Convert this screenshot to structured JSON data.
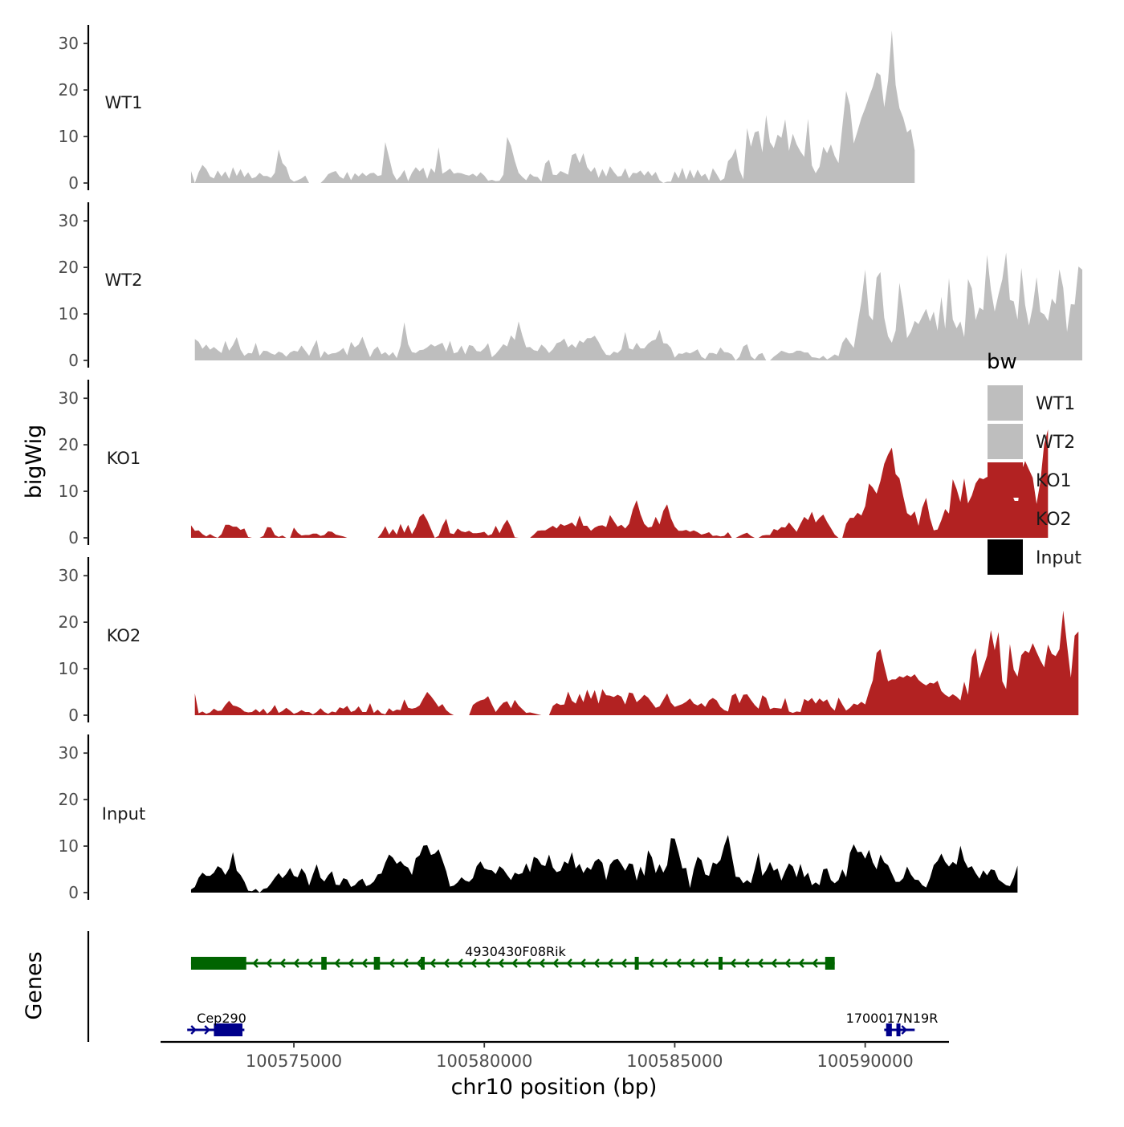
{
  "chart_data": {
    "type": "area",
    "xlabel": "chr10 position (bp)",
    "ylabel": "bigWig",
    "genes_label": "Genes",
    "xlim": [
      100571500,
      100592200
    ],
    "x_ticks": [
      {
        "value": 100575000,
        "label": "100575000"
      },
      {
        "value": 100580000,
        "label": "100580000"
      },
      {
        "value": 100585000,
        "label": "100585000"
      },
      {
        "value": 100590000,
        "label": "100590000"
      }
    ],
    "ylim": [
      0,
      34
    ],
    "y_ticks": [
      {
        "value": 0,
        "label": "0"
      },
      {
        "value": 10,
        "label": "10"
      },
      {
        "value": 20,
        "label": "20"
      },
      {
        "value": 30,
        "label": "30"
      }
    ],
    "legend": {
      "title": "bw",
      "placement": "right",
      "entries": [
        {
          "label": "WT1",
          "color": "#bebebe"
        },
        {
          "label": "WT2",
          "color": "#bebebe"
        },
        {
          "label": "KO1",
          "color": "#b22222"
        },
        {
          "label": "KO2",
          "color": "#b22222"
        },
        {
          "label": "Input",
          "color": "#000000"
        }
      ]
    },
    "bin_size_bp": 100,
    "series": [
      {
        "name": "WT1",
        "color": "#bebebe",
        "x_start": 100572300,
        "values": [
          2.6,
          0,
          2.3,
          3.9,
          3.0,
          1.4,
          1.0,
          2.7,
          1.4,
          2.5,
          0.9,
          3.4,
          1.5,
          3.0,
          1.3,
          2.3,
          1.0,
          1.3,
          2.2,
          1.5,
          1.5,
          1.1,
          2.2,
          7.2,
          4.3,
          3.4,
          0.9,
          0.3,
          0.6,
          1.0,
          1.6,
          0,
          0,
          0,
          0,
          0.8,
          1.9,
          2.3,
          2.6,
          1.4,
          0.9,
          2.4,
          0.6,
          2.1,
          1.4,
          2.2,
          1.5,
          2.1,
          2.2,
          1.5,
          1.7,
          8.8,
          5.5,
          2.1,
          0.6,
          1.5,
          2.8,
          0.4,
          2.2,
          3.4,
          2.5,
          3.3,
          0.9,
          3.2,
          2.2,
          7.7,
          2.0,
          2.5,
          3.1,
          2.0,
          2.2,
          2.1,
          1.8,
          1.6,
          2.0,
          1.4,
          2.3,
          1.6,
          0.5,
          0.7,
          0.4,
          0.5,
          1.8,
          9.9,
          8.0,
          4.8,
          2.2,
          1.3,
          0.6,
          2.0,
          1.4,
          1.3,
          0.3,
          4.2,
          5.0,
          1.8,
          1.7,
          2.6,
          2.2,
          1.8,
          6.0,
          6.4,
          4.3,
          6.4,
          3.4,
          2.4,
          3.4,
          1.1,
          3.0,
          1.4,
          3.6,
          2.4,
          1.4,
          1.5,
          3.2,
          1.0,
          2.2,
          2.1,
          2.7,
          1.6,
          2.6,
          1.5,
          2.4,
          0.6,
          0,
          0.3,
          0.3,
          2.5,
          1.0,
          3.3,
          0.7,
          2.9,
          1.0,
          2.9,
          1.4,
          2.0,
          0.5,
          3.2,
          1.9,
          0.5,
          1.0,
          4.7,
          5.6,
          7.4,
          2.8,
          0.8,
          11.8,
          7.8,
          10.9,
          11.2,
          6.6,
          14.6,
          8.8,
          7.5,
          10.4,
          9.7,
          13.7,
          6.9,
          10.6,
          8.3,
          6.8,
          5.6,
          13.8,
          3.8,
          2.1,
          3.5,
          7.8,
          6.4,
          8.3,
          5.8,
          4.3,
          12.1,
          19.8,
          16.7,
          8.5,
          11.2,
          14.0,
          16.1,
          18.5,
          20.7,
          23.8,
          23.2,
          16.3,
          22.0,
          32.8,
          21.1,
          16.1,
          14.0,
          10.9,
          11.6,
          7.0
        ]
      },
      {
        "name": "WT2",
        "color": "#bebebe",
        "x_start": 100572400,
        "values": [
          4.6,
          4.0,
          2.5,
          3.4,
          2.3,
          2.9,
          2.2,
          1.6,
          4.2,
          2.1,
          3.3,
          5.0,
          2.3,
          1.0,
          1.6,
          1.5,
          3.8,
          1.0,
          2.1,
          2.0,
          1.5,
          1.2,
          1.9,
          1.6,
          0.8,
          1.7,
          2.1,
          1.9,
          3.2,
          2.1,
          1.0,
          2.8,
          4.4,
          0.5,
          2.0,
          1.2,
          1.5,
          1.6,
          2.0,
          2.7,
          1.1,
          4.0,
          2.8,
          3.4,
          5.1,
          2.8,
          0.7,
          2.3,
          3.0,
          1.3,
          1.8,
          1.0,
          1.8,
          0.5,
          3.1,
          8.2,
          3.5,
          1.8,
          1.6,
          2.2,
          2.3,
          2.8,
          3.5,
          3.0,
          3.4,
          3.8,
          1.9,
          4.2,
          1.5,
          1.8,
          3.2,
          1.3,
          3.3,
          3.1,
          2.0,
          1.9,
          2.6,
          3.7,
          0.7,
          1.4,
          2.4,
          3.5,
          3.0,
          5.4,
          4.4,
          8.4,
          5.3,
          2.8,
          2.9,
          2.2,
          2.0,
          3.4,
          2.7,
          1.6,
          2.4,
          3.7,
          4.0,
          4.7,
          2.8,
          3.5,
          2.7,
          4.3,
          3.8,
          4.8,
          4.8,
          5.3,
          4.0,
          2.4,
          1.2,
          1.1,
          1.9,
          1.6,
          2.4,
          6.1,
          2.6,
          2.3,
          3.8,
          2.6,
          2.6,
          3.6,
          4.2,
          4.5,
          6.6,
          3.7,
          3.6,
          2.7,
          0.6,
          1.5,
          1.4,
          1.8,
          1.5,
          1.9,
          2.4,
          0.8,
          0.3,
          1.6,
          1.6,
          1.3,
          2.8,
          1.8,
          1.7,
          1.3,
          0,
          0.8,
          3.0,
          3.5,
          0.9,
          0.2,
          1.3,
          1.6,
          0,
          0,
          0.8,
          1.4,
          2.1,
          1.8,
          1.5,
          1.6,
          2.1,
          2.1,
          1.7,
          1.7,
          0.7,
          0.6,
          0.4,
          1.0,
          0.2,
          0.7,
          1.3,
          0.9,
          3.8,
          5.0,
          3.8,
          2.7,
          7.8,
          12.7,
          19.5,
          9.7,
          8.6,
          17.8,
          19.0,
          9.2,
          5.2,
          3.8,
          6.4,
          16.7,
          11.5,
          4.8,
          6.2,
          8.5,
          7.8,
          9.5,
          11.1,
          8.4,
          10.5,
          6.4,
          13.7,
          6.8,
          17.7,
          8.8,
          6.9,
          8.4,
          5.0,
          17.5,
          15.5,
          8.7,
          11.4,
          10.8,
          22.7,
          15.3,
          10.5,
          14.2,
          17.4,
          23.2,
          13.0,
          12.7,
          8.8,
          19.9,
          11.9,
          7.5,
          11.6,
          17.9,
          10.4,
          9.9,
          8.5,
          13.3,
          12.1,
          19.6,
          15.6,
          6.1,
          12.1,
          12.0,
          20.2,
          19.5
        ]
      },
      {
        "name": "KO1",
        "color": "#b22222",
        "x_start": 100572300,
        "values": [
          2.7,
          1.5,
          1.6,
          0.8,
          0.3,
          0.8,
          0.3,
          0,
          0.8,
          2.8,
          2.8,
          2.4,
          2.4,
          1.7,
          2.0,
          0.2,
          0,
          0,
          0,
          0.4,
          2.3,
          2.2,
          0.6,
          0.2,
          0.5,
          0,
          0,
          2.2,
          1.1,
          0.5,
          0.6,
          0.6,
          0.9,
          0.9,
          0.4,
          0.6,
          1.4,
          1.3,
          0.7,
          0.5,
          0.3,
          0,
          0,
          0,
          0,
          0,
          0,
          0,
          0,
          0,
          1.0,
          2.5,
          0.7,
          1.9,
          0.7,
          3.0,
          1.1,
          2.8,
          0.8,
          2.3,
          4.5,
          5.2,
          3.8,
          1.9,
          0,
          0.4,
          2.6,
          4.1,
          1.0,
          0.8,
          2.0,
          1.4,
          1.2,
          1.5,
          1.0,
          1.0,
          1.1,
          1.3,
          0.5,
          0.8,
          2.6,
          1.0,
          2.7,
          3.9,
          2.3,
          0.1,
          0,
          0,
          0,
          0,
          0.7,
          1.5,
          1.6,
          1.6,
          2.1,
          2.6,
          2.0,
          3.0,
          2.6,
          2.9,
          3.3,
          2.4,
          4.8,
          2.6,
          2.6,
          1.5,
          2.2,
          2.6,
          2.7,
          2.3,
          4.9,
          3.6,
          2.4,
          2.8,
          2.0,
          3.0,
          6.1,
          8.1,
          5.1,
          3.0,
          2.2,
          2.4,
          4.5,
          2.9,
          5.8,
          7.2,
          4.2,
          2.4,
          1.5,
          1.5,
          1.7,
          1.3,
          1.6,
          1.2,
          0.7,
          0.9,
          1.2,
          0.4,
          0.5,
          0.3,
          0.4,
          1.2,
          0,
          0,
          0.4,
          0.8,
          1.1,
          0.4,
          0,
          0,
          0.5,
          0.6,
          0.6,
          1.9,
          1.6,
          2.3,
          2.2,
          3.3,
          2.3,
          1.3,
          3.0,
          4.5,
          3.8,
          5.6,
          3.3,
          4.3,
          5.0,
          3.4,
          2.1,
          0.7,
          0,
          0,
          3.0,
          4.3,
          4.3,
          5.4,
          4.8,
          6.8,
          11.7,
          10.8,
          9.5,
          12.2,
          15.9,
          17.9,
          19.4,
          13.7,
          12.8,
          8.9,
          5.3,
          4.7,
          5.7,
          2.6,
          6.5,
          8.6,
          4.3,
          1.6,
          1.8,
          3.8,
          6.2,
          5.2,
          12.6,
          10.5,
          7.7,
          12.8,
          7.4,
          9.1,
          11.7,
          12.9,
          12.6,
          13.1,
          12.7,
          9.8,
          9.4,
          13.3,
          10.5,
          10.6,
          8.4,
          6.5,
          14.3,
          16.5,
          14.7,
          12.9,
          7.3,
          12.1,
          20.2,
          23.3
        ]
      },
      {
        "name": "KO2",
        "color": "#b22222",
        "x_start": 100572400,
        "values": [
          4.7,
          0.4,
          0.8,
          0.3,
          0.6,
          1.4,
          0.9,
          1.0,
          2.2,
          3.1,
          2.1,
          1.9,
          1.5,
          0.8,
          0.6,
          0.7,
          1.3,
          0.6,
          1.4,
          0.3,
          1.0,
          2.2,
          0.5,
          0.9,
          1.6,
          1.0,
          0.3,
          0.6,
          1.1,
          0.7,
          0.7,
          0.2,
          0.7,
          1.5,
          0.7,
          0.3,
          0.8,
          0.6,
          1.7,
          1.4,
          2.0,
          0.7,
          1.0,
          1.9,
          0.7,
          0.7,
          2.6,
          0.5,
          1.2,
          0.4,
          0.2,
          1.5,
          0.8,
          1.2,
          1.1,
          3.4,
          1.6,
          1.4,
          1.6,
          2.1,
          3.6,
          5.0,
          4.1,
          3.0,
          1.8,
          2.4,
          1.1,
          0.4,
          0,
          0,
          0,
          0,
          0,
          2.2,
          2.8,
          3.2,
          3.4,
          4.1,
          2.3,
          0.7,
          1.8,
          2.7,
          3.0,
          1.5,
          3.3,
          2.1,
          1.3,
          0.5,
          0.6,
          0.4,
          0.2,
          0,
          0,
          0,
          2.0,
          2.6,
          2.2,
          2.3,
          5.1,
          3.1,
          2.5,
          4.6,
          2.8,
          5.5,
          3.5,
          5.4,
          2.5,
          5.6,
          4.3,
          4.2,
          3.9,
          4.4,
          4.0,
          2.3,
          4.9,
          4.7,
          2.8,
          3.5,
          4.4,
          3.8,
          2.7,
          1.6,
          1.9,
          3.3,
          4.7,
          2.7,
          1.8,
          2.1,
          2.4,
          2.9,
          3.6,
          2.5,
          2.1,
          2.6,
          1.8,
          3.2,
          3.7,
          3.2,
          1.8,
          1.1,
          0.8,
          4.2,
          4.7,
          2.6,
          4.4,
          4.5,
          3.3,
          2.2,
          1.4,
          4.3,
          3.7,
          1.3,
          1.6,
          1.5,
          1.4,
          3.7,
          0.8,
          0.5,
          0.8,
          0.7,
          3.5,
          3.0,
          3.7,
          2.5,
          3.6,
          2.9,
          3.4,
          1.8,
          1.0,
          3.8,
          2.3,
          1.0,
          1.6,
          2.5,
          2.2,
          2.9,
          2.3,
          5.1,
          7.5,
          13.4,
          14.2,
          10.6,
          7.3,
          7.7,
          7.7,
          8.4,
          8.1,
          8.6,
          8.2,
          8.8,
          7.6,
          6.9,
          6.4,
          7.0,
          6.8,
          7.4,
          5.2,
          4.4,
          3.9,
          4.5,
          4.0,
          3.2,
          7.2,
          4.4,
          12.4,
          14.4,
          7.9,
          10.3,
          12.8,
          18.3,
          14.0,
          17.9,
          7.3,
          5.6,
          15.3,
          9.8,
          8.3,
          12.9,
          13.9,
          13.4,
          15.5,
          13.6,
          11.8,
          10.3,
          15.2,
          13.2,
          12.7,
          14.2,
          22.5,
          15.1,
          8.1,
          17.1,
          18.0
        ]
      },
      {
        "name": "Input",
        "color": "#000000",
        "x_start": 100572300,
        "values": [
          0.7,
          1.2,
          3.2,
          4.3,
          3.6,
          3.6,
          4.3,
          5.7,
          5.2,
          3.8,
          5.2,
          8.7,
          4.7,
          3.8,
          2.4,
          0.4,
          0.3,
          0.8,
          0,
          0.8,
          1.0,
          2.0,
          3.2,
          4.2,
          3.1,
          4.0,
          5.3,
          3.6,
          3.3,
          5.2,
          4.1,
          1.5,
          3.9,
          6.1,
          3.2,
          2.4,
          3.7,
          4.6,
          1.7,
          1.6,
          3.1,
          2.8,
          1.2,
          1.6,
          2.5,
          3.0,
          1.4,
          1.7,
          2.4,
          3.9,
          4.1,
          6.4,
          8.2,
          7.5,
          6.2,
          6.8,
          5.8,
          5.4,
          3.8,
          7.4,
          8.0,
          10.1,
          10.2,
          8.1,
          8.4,
          9.3,
          7.0,
          4.6,
          1.3,
          1.5,
          2.2,
          3.3,
          2.6,
          2.3,
          3.1,
          5.7,
          6.7,
          5.2,
          4.9,
          4.8,
          4.0,
          5.7,
          5.0,
          3.8,
          2.7,
          4.3,
          3.9,
          4.2,
          6.3,
          4.4,
          7.7,
          7.3,
          6.0,
          5.7,
          8.2,
          5.4,
          4.4,
          4.7,
          6.7,
          6.2,
          8.7,
          5.2,
          6.2,
          4.2,
          5.5,
          4.9,
          6.7,
          7.3,
          6.4,
          2.7,
          6.0,
          7.0,
          7.3,
          6.1,
          4.7,
          6.3,
          6.1,
          2.6,
          5.6,
          3.6,
          9.1,
          7.6,
          4.2,
          6.1,
          4.3,
          5.9,
          11.7,
          11.6,
          8.6,
          5.2,
          5.3,
          1.0,
          5.0,
          7.7,
          7.0,
          3.9,
          3.6,
          6.5,
          6.1,
          7.0,
          10.1,
          12.4,
          7.8,
          3.4,
          3.3,
          2.0,
          2.7,
          2.0,
          5.1,
          8.6,
          3.6,
          4.8,
          6.6,
          4.7,
          5.2,
          2.6,
          4.6,
          6.3,
          5.6,
          3.3,
          6.2,
          3.3,
          4.3,
          1.6,
          2.2,
          1.6,
          5.0,
          5.2,
          2.7,
          2.0,
          2.7,
          5.0,
          3.3,
          8.5,
          10.4,
          8.7,
          8.8,
          7.3,
          9.2,
          6.5,
          5.0,
          8.2,
          6.5,
          5.9,
          4.1,
          2.3,
          2.3,
          3.1,
          5.6,
          3.9,
          2.8,
          2.7,
          1.6,
          1.1,
          3.1,
          5.9,
          6.8,
          8.4,
          6.6,
          5.6,
          6.6,
          6.0,
          10.1,
          6.9,
          5.3,
          5.7,
          4.2,
          3.0,
          4.8,
          3.7,
          5.0,
          4.8,
          2.8,
          2.2,
          1.6,
          1.4,
          3.2,
          5.8
        ]
      }
    ],
    "genes": [
      {
        "name": "4930430F08Rik",
        "strand": "-",
        "color": "#006400",
        "start": 100572300,
        "end": 100589200,
        "exons": [
          [
            100572300,
            100573750
          ],
          [
            100575720,
            100575860
          ],
          [
            100577100,
            100577260
          ],
          [
            100578330,
            100578430
          ],
          [
            100583950,
            100584030
          ],
          [
            100586150,
            100586230
          ],
          [
            100588950,
            100589200
          ]
        ]
      },
      {
        "name": "Cep290",
        "strand": "+",
        "color": "#00008b",
        "start": 100572200,
        "end": 100573700,
        "exons": [
          [
            100572900,
            100573650
          ]
        ]
      },
      {
        "name": "1700017N19R",
        "strand": "+",
        "color": "#00008b",
        "start": 100590500,
        "end": 100591300,
        "exons": [
          [
            100590550,
            100590700
          ],
          [
            100590820,
            100590880
          ]
        ]
      }
    ]
  }
}
